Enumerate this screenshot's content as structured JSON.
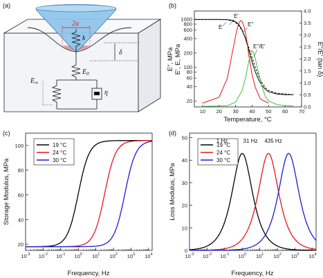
{
  "panels": {
    "a": "(a)",
    "b": "(b)",
    "c": "(c)",
    "d": "(d)"
  },
  "diagram": {
    "contact": "2a",
    "spring": "k",
    "depth": "δ",
    "e0": "E",
    "e0_sub": "0",
    "einf": "E",
    "einf_sub": "∞",
    "eta": "η"
  },
  "colors": {
    "black": "#000000",
    "red": "#e8141c",
    "blue": "#1a1ad8",
    "pink": "#e05a6a",
    "green": "#3cbf3c",
    "tip": "#8ec5ea"
  },
  "chart_data": [
    {
      "id": "b",
      "type": "line",
      "xlabel": "Temperature, °C",
      "ylabel_left_outer": "E'', MPa",
      "ylabel_left_inner": "E', E, MPa",
      "ylabel_right": "E''/E' (tan δ)",
      "xlim": [
        5,
        70
      ],
      "xticks": [
        10,
        20,
        30,
        40,
        50,
        60,
        70
      ],
      "ylim_left_log": [
        15,
        1500
      ],
      "yticks_left": [
        20,
        40,
        60,
        80,
        100,
        200,
        400,
        600,
        800,
        1000
      ],
      "ylim_right": [
        0,
        4.0
      ],
      "yticks_right": [
        "0.0",
        "0.5",
        "1.0",
        "1.5",
        "2.0",
        "2.5",
        "3.0",
        "3.5",
        "4.0"
      ],
      "annotations": [
        "E'",
        "E''",
        "E",
        "E''/E'"
      ],
      "series": [
        {
          "name": "E'",
          "color": "#000000",
          "style": "solid",
          "x": [
            5,
            20,
            25,
            28,
            30,
            32,
            34,
            36,
            38,
            40,
            42,
            44,
            46,
            48,
            50,
            55,
            60,
            65
          ],
          "y": [
            1000,
            1000,
            990,
            960,
            900,
            780,
            600,
            400,
            230,
            130,
            80,
            55,
            42,
            35,
            31,
            28,
            27,
            27
          ]
        },
        {
          "name": "E",
          "color": "#000000",
          "style": "dashed",
          "x": [
            5,
            20,
            25,
            28,
            30,
            32,
            34,
            36,
            38,
            40,
            42,
            44,
            46,
            48,
            50,
            55,
            60,
            65
          ],
          "y": [
            1000,
            1000,
            980,
            930,
            860,
            740,
            580,
            410,
            260,
            160,
            100,
            66,
            48,
            38,
            33,
            29,
            28,
            27
          ]
        },
        {
          "name": "E''",
          "color": "#e8141c",
          "style": "solid",
          "x": [
            10,
            20,
            25,
            28,
            30,
            31,
            32,
            33,
            34,
            35,
            36,
            37,
            38,
            40,
            42,
            45,
            50
          ],
          "y": [
            18,
            24,
            60,
            200,
            450,
            650,
            850,
            950,
            900,
            750,
            520,
            330,
            180,
            70,
            38,
            22,
            18
          ]
        },
        {
          "name": "E''/E'",
          "color": "#3cbf3c",
          "style": "solid",
          "axis": "right",
          "x": [
            10,
            25,
            30,
            34,
            36,
            38,
            39,
            40,
            41,
            42,
            44,
            46,
            48,
            50,
            55,
            60,
            65
          ],
          "y": [
            0.02,
            0.05,
            0.2,
            0.7,
            1.2,
            1.9,
            2.2,
            2.35,
            2.25,
            2.0,
            1.4,
            0.85,
            0.45,
            0.25,
            0.1,
            0.05,
            0.04
          ]
        }
      ]
    },
    {
      "id": "c",
      "type": "line",
      "xlabel": "Frequency, Hz",
      "ylabel": "Storage Modulus, MPa",
      "xscale": "log",
      "xlim_exp": [
        -3,
        4.2
      ],
      "ylim": [
        15,
        110
      ],
      "yticks": [
        20,
        40,
        60,
        80,
        100
      ],
      "xticks_exp": [
        -3,
        -2,
        -1,
        0,
        1,
        2,
        3,
        4
      ],
      "legend": "top-left",
      "series": [
        {
          "name": "19 °C",
          "color": "#000000",
          "center_log": 0.0,
          "min": 18,
          "max": 104
        },
        {
          "name": "24 °C",
          "color": "#e8141c",
          "center_log": 1.5,
          "min": 18,
          "max": 104
        },
        {
          "name": "30 °C",
          "color": "#1a1ad8",
          "center_log": 2.65,
          "min": 18,
          "max": 104
        }
      ]
    },
    {
      "id": "d",
      "type": "line",
      "xlabel": "Frequency, Hz",
      "ylabel": "Loss Modulus, MPa",
      "xscale": "log",
      "xlim_exp": [
        -3,
        4.2
      ],
      "ylim": [
        0,
        52
      ],
      "yticks": [
        0,
        10,
        20,
        30,
        40,
        50
      ],
      "xticks_exp": [
        -3,
        -2,
        -1,
        0,
        1,
        2,
        3,
        4
      ],
      "legend": "top-left",
      "annotations": [
        "1 Hz",
        "31 Hz",
        "435 Hz"
      ],
      "series": [
        {
          "name": "19 °C",
          "color": "#000000",
          "peak_log": 0.0,
          "peak": 43
        },
        {
          "name": "24 °C",
          "color": "#e8141c",
          "peak_log": 1.49,
          "peak": 43
        },
        {
          "name": "30 °C",
          "color": "#1a1ad8",
          "peak_log": 2.64,
          "peak": 43
        }
      ]
    }
  ]
}
